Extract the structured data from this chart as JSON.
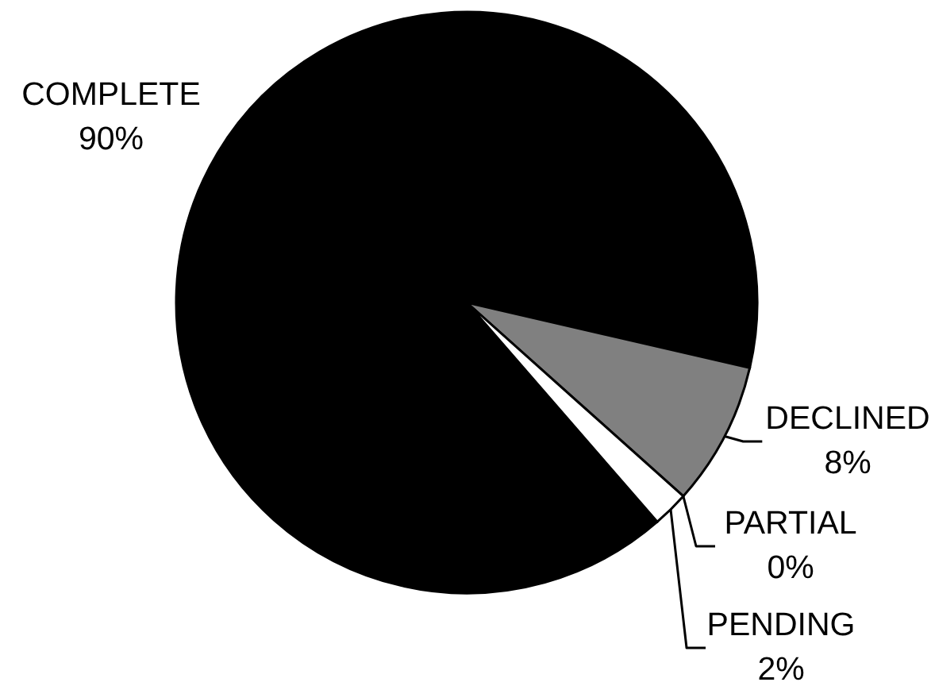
{
  "chart_data": {
    "type": "pie",
    "categories": [
      "COMPLETE",
      "DECLINED",
      "PARTIAL",
      "PENDING"
    ],
    "values": [
      90,
      8,
      0,
      2
    ],
    "colors": [
      "#000000",
      "#808080",
      null,
      "#ffffff"
    ],
    "value_labels": [
      "90%",
      "8%",
      "0%",
      "2%"
    ]
  }
}
